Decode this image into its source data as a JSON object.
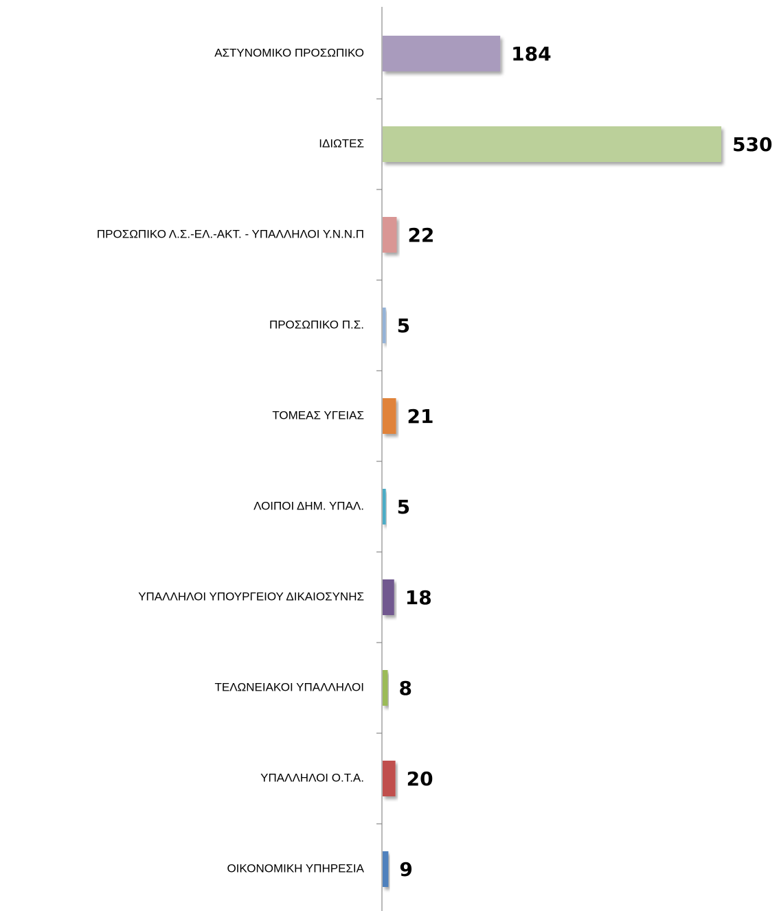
{
  "chart_data": {
    "type": "barh",
    "categories": [
      "ΑΣΤΥΝΟΜΙΚΟ ΠΡΟΣΩΠΙΚΟ",
      "ΙΔΙΩΤΕΣ",
      "ΠΡΟΣΩΠΙΚΟ Λ.Σ.-ΕΛ.-ΑΚΤ. - ΥΠΑΛΛΗΛΟΙ Υ.Ν.Ν.Π",
      "ΠΡΟΣΩΠΙΚΟ Π.Σ.",
      "ΤΟΜΕΑΣ ΥΓΕΙΑΣ",
      "ΛΟΙΠΟΙ ΔΗΜ. ΥΠΑΛ.",
      "ΥΠΑΛΛΗΛΟΙ ΥΠΟΥΡΓΕΙΟΥ ΔΙΚΑΙΟΣΥΝΗΣ",
      "ΤΕΛΩΝΕΙΑΚΟΙ ΥΠΑΛΛΗΛΟΙ",
      "ΥΠΑΛΛΗΛΟΙ Ο.Τ.Α.",
      "ΟΙΚΟΝΟΜΙΚΗ ΥΠΗΡΕΣΙΑ"
    ],
    "values": [
      184,
      530,
      22,
      5,
      21,
      5,
      18,
      8,
      20,
      9
    ],
    "colors": [
      "#a99bbd",
      "#bbd09a",
      "#d99694",
      "#95b3d7",
      "#e0833a",
      "#4bacc6",
      "#71588f",
      "#9bbb59",
      "#c0504d",
      "#4f81bd"
    ]
  }
}
